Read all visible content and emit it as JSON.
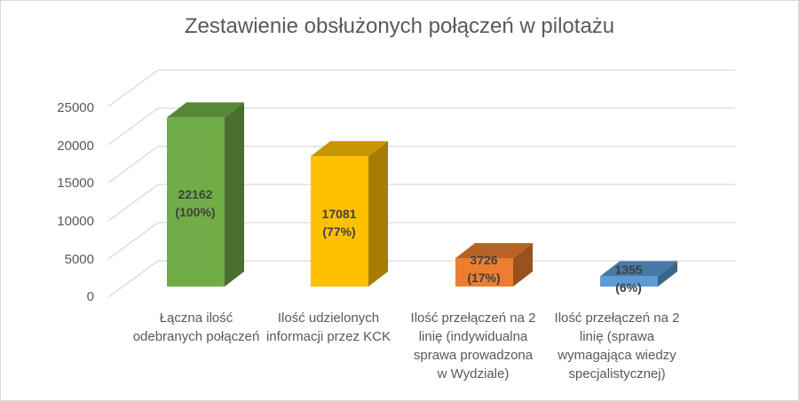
{
  "chart": {
    "title": "Zestawienie obsłużonych połączeń w pilotażu",
    "y_ticks": [
      "25000",
      "20000",
      "15000",
      "10000",
      "5000",
      "0"
    ],
    "x_labels": [
      [
        "Łączna ilość",
        "odebranych połączeń"
      ],
      [
        "Ilość udzielonych",
        "informacji przez KCK"
      ],
      [
        "Ilość przełączeń na 2",
        "linię (indywidualna",
        "sprawa prowadzona",
        "w Wydziale)"
      ],
      [
        "Ilość przełączeń na 2",
        "linię (sprawa",
        "wymagająca wiedzy",
        "specjalistycznej)"
      ]
    ],
    "data_labels": [
      {
        "value": "22162",
        "pct": "(100%)"
      },
      {
        "value": "17081",
        "pct": "(77%)"
      },
      {
        "value": "3726",
        "pct": "(17%)"
      },
      {
        "value": "1355",
        "pct": "(6%)"
      }
    ]
  },
  "chart_data": {
    "type": "bar",
    "title": "Zestawienie obsłużonych połączeń w pilotażu",
    "categories": [
      "Łączna ilość odebranych połączeń",
      "Ilość udzielonych informacji przez KCK",
      "Ilość przełączeń na 2 linię (indywidualna sprawa prowadzona w Wydziale)",
      "Ilość przełączeń na 2 linię (sprawa wymagająca wiedzy specjalistycznej)"
    ],
    "values": [
      22162,
      17081,
      3726,
      1355
    ],
    "percent_labels": [
      "100%",
      "77%",
      "17%",
      "6%"
    ],
    "colors": [
      "#70AD47",
      "#FFC000",
      "#ED7D31",
      "#5B9BD5"
    ],
    "xlabel": "",
    "ylabel": "",
    "ylim": [
      0,
      25000
    ],
    "yticks": [
      0,
      5000,
      10000,
      15000,
      20000,
      25000
    ],
    "grid": true,
    "legend": "none",
    "style": "3d-column"
  }
}
